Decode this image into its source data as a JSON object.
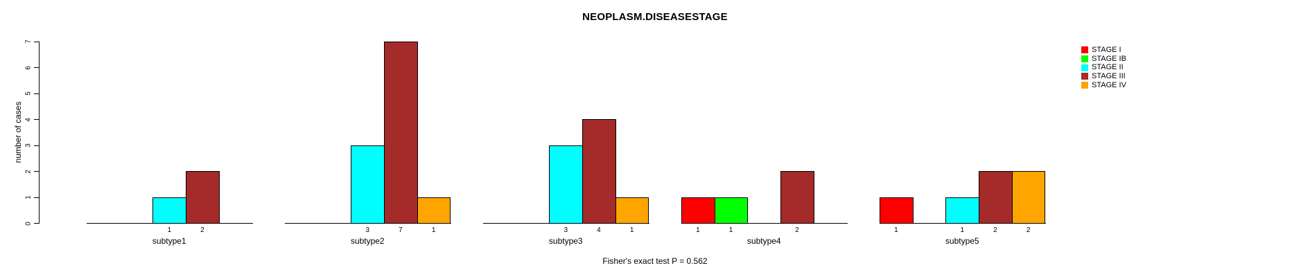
{
  "chart_data": {
    "type": "bar",
    "title": "NEOPLASM.DISEASESTAGE",
    "ylabel": "number of cases",
    "xlabel": "",
    "caption": "Fisher's exact test P = 0.562",
    "ylim": [
      0,
      7
    ],
    "yticks": [
      0,
      1,
      2,
      3,
      4,
      5,
      6,
      7
    ],
    "grid": false,
    "legend_position": "top-right",
    "bar_value_labels_shown": true,
    "categories": [
      "subtype1",
      "subtype2",
      "subtype3",
      "subtype4",
      "subtype5"
    ],
    "series": [
      {
        "name": "STAGE I",
        "color": "#FF0000",
        "values": [
          0,
          0,
          0,
          1,
          1
        ]
      },
      {
        "name": "STAGE IB",
        "color": "#00FF00",
        "values": [
          0,
          0,
          0,
          1,
          0
        ]
      },
      {
        "name": "STAGE II",
        "color": "#00FFFF",
        "values": [
          1,
          3,
          3,
          0,
          1
        ]
      },
      {
        "name": "STAGE III",
        "color": "#A52A2A",
        "values": [
          2,
          7,
          4,
          2,
          2
        ]
      },
      {
        "name": "STAGE IV",
        "color": "#FFA500",
        "values": [
          0,
          1,
          1,
          0,
          2
        ]
      }
    ]
  }
}
